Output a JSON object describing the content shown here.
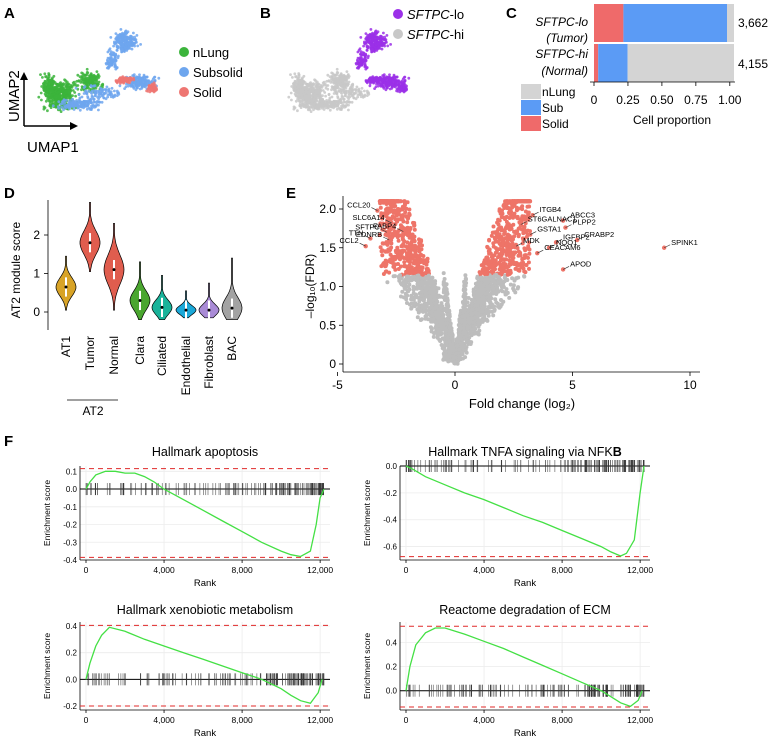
{
  "panel_letters": [
    "A",
    "B",
    "C",
    "D",
    "E",
    "F"
  ],
  "colors": {
    "nLung": "#3cb43c",
    "Subsolid": "#6ea6ee",
    "Solid": "#ee7672",
    "lo": "#9b30e8",
    "hi": "#c8c8c8",
    "bar_grey": "#d4d4d4",
    "bar_blue": "#5b9bf5",
    "bar_red": "#ef6a6a",
    "gsea_line": "#44e044",
    "dash_red": "#e02a2a",
    "volcano_grey": "#bdbdbd",
    "volcano_red": "#ee7468",
    "violin": [
      "#d8a326",
      "#e05d4e",
      "#e05d4e",
      "#4aa62f",
      "#19b39a",
      "#1aa8d8",
      "#a98bd6",
      "#a3a3a3"
    ]
  },
  "panel_a": {
    "xlabel": "UMAP1",
    "ylabel": "UMAP2",
    "legend": [
      "nLung",
      "Subsolid",
      "Solid"
    ]
  },
  "panel_b": {
    "legend": [
      {
        "italic": "SFTPC",
        "suffix": "-lo"
      },
      {
        "italic": "SFTPC",
        "suffix": "-hi"
      }
    ]
  },
  "chart_data": [
    {
      "id": "C",
      "type": "bar",
      "orientation": "horizontal-stacked",
      "categories": [
        {
          "line1": "SFTPC-lo",
          "line2": "(Tumor)",
          "total": "3,662"
        },
        {
          "line1": "SFTPC-hi",
          "line2": "(Normal)",
          "total": "4,155"
        }
      ],
      "series": [
        {
          "name": "Solid",
          "values": [
            0.21,
            0.03
          ]
        },
        {
          "name": "Sub",
          "values": [
            0.74,
            0.21
          ]
        },
        {
          "name": "nLung",
          "values": [
            0.05,
            0.76
          ]
        }
      ],
      "legend": [
        "nLung",
        "Sub",
        "Solid"
      ],
      "xlabel": "Cell proportion",
      "xticks": [
        "0",
        "0.25",
        "0.50",
        "0.75",
        "1.00"
      ],
      "xlim": [
        0,
        1
      ]
    },
    {
      "id": "D",
      "type": "violin",
      "ylabel": "AT2 module score",
      "yticks": [
        "0",
        "1",
        "2"
      ],
      "ylim": [
        -0.4,
        3.0
      ],
      "categories": [
        "AT1",
        "Tumor",
        "Normal",
        "Clara",
        "Ciliated",
        "Endothelial",
        "Fibroblast",
        "BAC"
      ],
      "group_label": "AT2",
      "medians": [
        0.65,
        1.8,
        1.1,
        0.3,
        0.12,
        0.05,
        0.05,
        0.1
      ],
      "ranges": [
        [
          0.05,
          1.45
        ],
        [
          1.05,
          2.85
        ],
        [
          0.05,
          2.3
        ],
        [
          -0.2,
          1.3
        ],
        [
          -0.2,
          0.95
        ],
        [
          -0.15,
          0.55
        ],
        [
          -0.15,
          0.75
        ],
        [
          -0.2,
          1.4
        ]
      ]
    },
    {
      "id": "E",
      "type": "scatter",
      "xlabel": "Fold change (log₂)",
      "ylabel": "–log₁₀(FDR)",
      "xticks": [
        "-5",
        "0",
        "5",
        "10"
      ],
      "yticks": [
        "0",
        "0.5",
        "1.0",
        "1.5",
        "2.0"
      ],
      "xlim": [
        -5.7,
        10.8
      ],
      "ylim": [
        -0.05,
        2.2
      ],
      "labeled_genes": [
        {
          "name": "CCL20",
          "x": -3.3,
          "y": 1.98
        },
        {
          "name": "SLC6A14",
          "x": -2.7,
          "y": 1.82
        },
        {
          "name": "SFTPC",
          "x": -2.9,
          "y": 1.7
        },
        {
          "name": "FABP4",
          "x": -2.2,
          "y": 1.71
        },
        {
          "name": "TTN",
          "x": -3.6,
          "y": 1.62
        },
        {
          "name": "EDNRB",
          "x": -2.8,
          "y": 1.6
        },
        {
          "name": "CCL2",
          "x": -3.8,
          "y": 1.52
        },
        {
          "name": "ITGB4",
          "x": 3.3,
          "y": 1.92
        },
        {
          "name": "ABCC3",
          "x": 4.6,
          "y": 1.85
        },
        {
          "name": "ST6GALNAC1",
          "x": 2.8,
          "y": 1.8
        },
        {
          "name": "PLPP2",
          "x": 4.7,
          "y": 1.76
        },
        {
          "name": "GSTA1",
          "x": 3.2,
          "y": 1.67
        },
        {
          "name": "IGFBP2",
          "x": 4.3,
          "y": 1.57
        },
        {
          "name": "CRABP2",
          "x": 5.2,
          "y": 1.6
        },
        {
          "name": "MDK",
          "x": 2.6,
          "y": 1.52
        },
        {
          "name": "NQO1",
          "x": 4.0,
          "y": 1.5
        },
        {
          "name": "CEACAM6",
          "x": 3.5,
          "y": 1.43
        },
        {
          "name": "APOD",
          "x": 4.6,
          "y": 1.22
        },
        {
          "name": "SPINK1",
          "x": 8.9,
          "y": 1.5
        }
      ]
    },
    {
      "id": "F1",
      "type": "line",
      "title": "Hallmark apoptosis",
      "xlabel": "Rank",
      "ylabel": "Enrichment score",
      "xticks": [
        "0",
        "4,000",
        "8,000",
        "12,000"
      ],
      "yticks": [
        "0.1",
        "0.0",
        "-0.1",
        "-0.2",
        "-0.3",
        "-0.4"
      ],
      "ylim": [
        -0.4,
        0.13
      ],
      "x": [
        0,
        200,
        500,
        1000,
        1500,
        2000,
        2500,
        3000,
        3500,
        4000,
        5000,
        6000,
        7000,
        8000,
        9000,
        10000,
        10500,
        11000,
        11500,
        11800,
        12000,
        12200
      ],
      "y": [
        0,
        0.04,
        0.08,
        0.1,
        0.1,
        0.09,
        0.09,
        0.07,
        0.04,
        0.0,
        -0.06,
        -0.12,
        -0.18,
        -0.24,
        -0.3,
        -0.35,
        -0.37,
        -0.38,
        -0.35,
        -0.2,
        -0.05,
        0
      ],
      "dashed": [
        0.115,
        -0.385
      ]
    },
    {
      "id": "F2",
      "type": "line",
      "title": "Hallmark TNFA signaling via NFK",
      "title_bold": "B",
      "xlabel": "Rank",
      "ylabel": "Enrichment score",
      "xticks": [
        "0",
        "4,000",
        "8,000",
        "12,000"
      ],
      "yticks": [
        "0.0",
        "-0.2",
        "-0.4",
        "-0.6"
      ],
      "ylim": [
        -0.7,
        0.0
      ],
      "x": [
        0,
        300,
        1000,
        2000,
        3000,
        4000,
        5000,
        6000,
        7000,
        8000,
        9000,
        10000,
        10500,
        11000,
        11300,
        11700,
        12000,
        12200
      ],
      "y": [
        0,
        -0.02,
        -0.08,
        -0.14,
        -0.2,
        -0.25,
        -0.31,
        -0.37,
        -0.42,
        -0.48,
        -0.54,
        -0.6,
        -0.64,
        -0.67,
        -0.65,
        -0.55,
        -0.2,
        0
      ],
      "dashed": [
        0.0,
        -0.675
      ]
    },
    {
      "id": "F3",
      "type": "line",
      "title": "Hallmark xenobiotic metabolism",
      "xlabel": "Rank",
      "ylabel": "Enrichment score",
      "xticks": [
        "0",
        "4,000",
        "8,000",
        "12,000"
      ],
      "yticks": [
        "0.4",
        "0.2",
        "0.0",
        "-0.2"
      ],
      "ylim": [
        -0.23,
        0.43
      ],
      "x": [
        0,
        200,
        500,
        800,
        1200,
        2000,
        3000,
        4000,
        5000,
        6000,
        7000,
        8000,
        9000,
        10000,
        10500,
        11000,
        11500,
        11900,
        12100
      ],
      "y": [
        0,
        0.12,
        0.25,
        0.33,
        0.39,
        0.36,
        0.3,
        0.25,
        0.2,
        0.15,
        0.1,
        0.05,
        0.0,
        -0.07,
        -0.12,
        -0.16,
        -0.18,
        -0.1,
        0
      ],
      "dashed": [
        0.405,
        -0.2
      ]
    },
    {
      "id": "F4",
      "type": "line",
      "title": "Reactome degradation of ECM",
      "xlabel": "Rank",
      "ylabel": "Enrichment score",
      "xticks": [
        "0",
        "4,000",
        "8,000",
        "12,000"
      ],
      "yticks": [
        "0.4",
        "0.2",
        "0.0"
      ],
      "ylim": [
        -0.16,
        0.57
      ],
      "x": [
        0,
        200,
        500,
        1000,
        1500,
        2000,
        3000,
        4000,
        5000,
        6000,
        7000,
        8000,
        9000,
        10000,
        10500,
        11000,
        11500,
        11900,
        12100
      ],
      "y": [
        0,
        0.2,
        0.38,
        0.48,
        0.52,
        0.52,
        0.47,
        0.41,
        0.35,
        0.28,
        0.21,
        0.14,
        0.07,
        0.0,
        -0.05,
        -0.1,
        -0.13,
        -0.08,
        0
      ],
      "dashed": [
        0.535,
        -0.135
      ]
    }
  ]
}
